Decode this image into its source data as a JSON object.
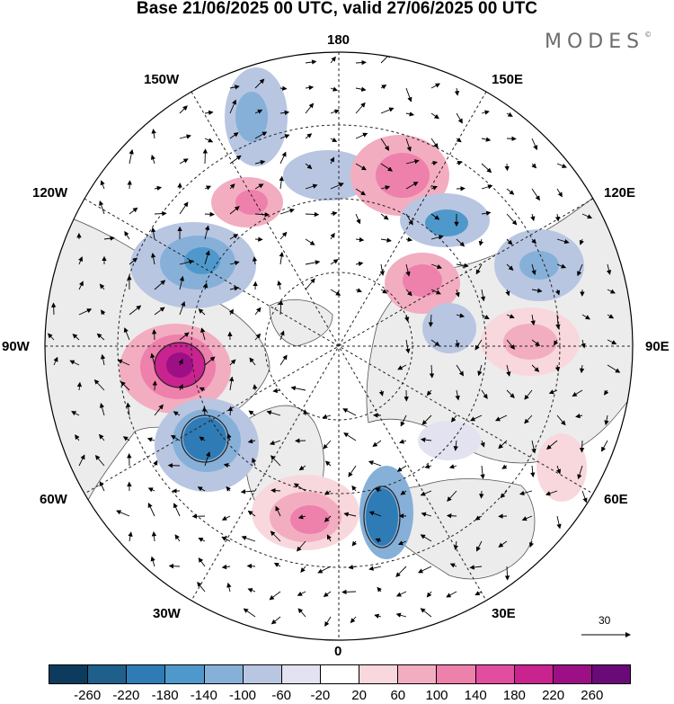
{
  "title": "Base 21/06/2025 00 UTC, valid 27/06/2025 00 UTC",
  "logo": {
    "text": "MODES",
    "mark": "©"
  },
  "longitude_labels": {
    "top": "180",
    "top_left": "150W",
    "top_right": "150E",
    "upper_left": "120W",
    "upper_right": "120E",
    "left": "90W",
    "right": "90E",
    "lower_left": "60W",
    "lower_right": "60E",
    "bottom_left": "30W",
    "bottom_right": "30E",
    "bottom": "0"
  },
  "reference_vector": {
    "label": "30"
  },
  "colorbar": {
    "colors": [
      "#0d3b5e",
      "#1f5f8b",
      "#2f7bb5",
      "#4f98cb",
      "#86b0d8",
      "#b8c6e2",
      "#e2e2f0",
      "#ffffff",
      "#f8d8dc",
      "#f3adc0",
      "#ee80ac",
      "#e14d9f",
      "#c8238f",
      "#9c0f85",
      "#6a0a78"
    ],
    "tick_labels": [
      "-260",
      "-220",
      "-180",
      "-140",
      "-100",
      "-60",
      "-20",
      "20",
      "60",
      "100",
      "140",
      "180",
      "220",
      "260"
    ]
  },
  "anomaly_centers": [
    {
      "sign": "neg",
      "level": 3,
      "label": "150W low"
    },
    {
      "sign": "neg",
      "level": 4,
      "label": "120W low"
    },
    {
      "sign": "pos",
      "level": 6,
      "label": "90W high"
    },
    {
      "sign": "neg",
      "level": 5,
      "label": "60W low"
    },
    {
      "sign": "pos",
      "level": 3,
      "label": "North Atlantic high"
    },
    {
      "sign": "neg",
      "level": 4,
      "label": "Norwegian Sea low"
    },
    {
      "sign": "pos",
      "level": 3,
      "label": "150E high"
    },
    {
      "sign": "neg",
      "level": 4,
      "label": "Siberia low"
    },
    {
      "sign": "pos",
      "level": 3,
      "label": "120E high"
    },
    {
      "sign": "pos",
      "level": 2,
      "label": "90E high"
    }
  ]
}
